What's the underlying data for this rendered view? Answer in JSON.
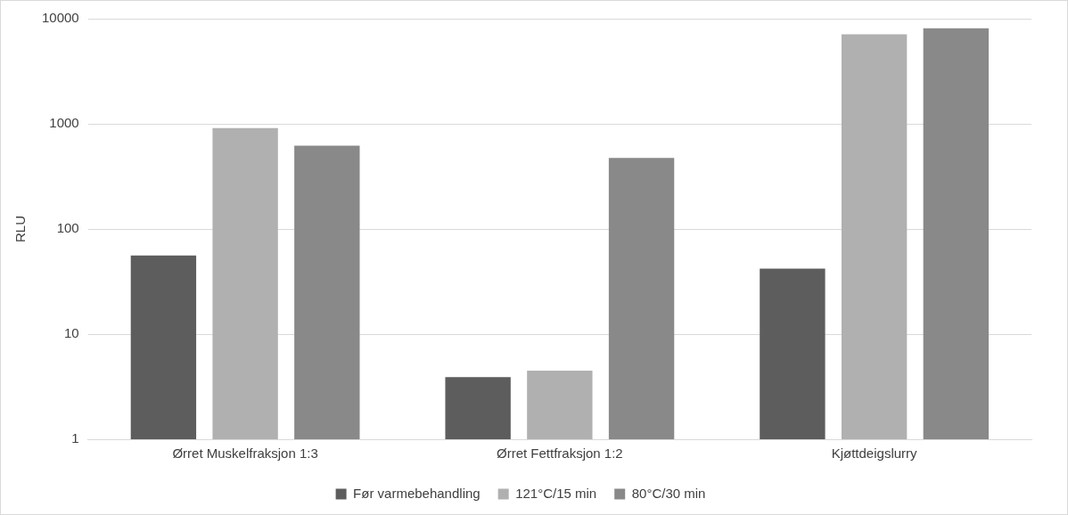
{
  "chart_data": {
    "type": "bar",
    "ylabel": "RLU",
    "categories": [
      "Ørret Muskelfraksjon 1:3",
      "Ørret Fettfraksjon 1:2",
      "Kjøttdeigslurry"
    ],
    "series": [
      {
        "name": "Før varmebehandling",
        "color": "#5d5d5d",
        "values": [
          56,
          3.9,
          42
        ]
      },
      {
        "name": "121°C/15 min",
        "color": "#b0b0b0",
        "values": [
          910,
          4.5,
          7100
        ]
      },
      {
        "name": "80°C/30 min",
        "color": "#898989",
        "values": [
          620,
          475,
          8100
        ]
      }
    ],
    "log": true,
    "ylim": [
      1,
      10000
    ],
    "yticks": [
      1,
      10,
      100,
      1000,
      10000
    ],
    "grid": "y",
    "legend": "bottom"
  }
}
